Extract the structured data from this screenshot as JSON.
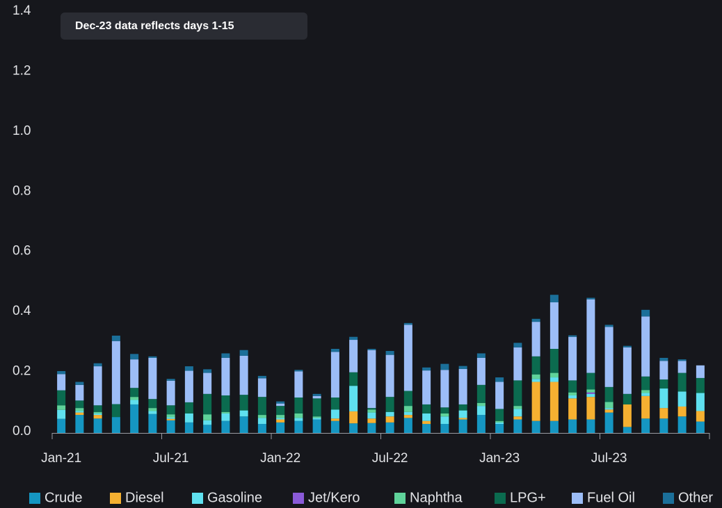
{
  "chart_data": {
    "type": "stacked_bar",
    "annotation": "Dec-23 data reflects days 1-15",
    "categories": [
      "Jan-21",
      null,
      null,
      null,
      null,
      null,
      "Jul-21",
      null,
      null,
      null,
      null,
      null,
      "Jan-22",
      null,
      null,
      null,
      null,
      null,
      "Jul-22",
      null,
      null,
      null,
      null,
      null,
      "Jan-23",
      null,
      null,
      null,
      null,
      null,
      "Jul-23",
      null,
      null,
      null,
      null,
      null
    ],
    "ylim": [
      0,
      1.4
    ],
    "yticks": [
      {
        "value": 0,
        "label": "0.0"
      },
      0.2,
      0.4,
      0.6,
      0.8,
      {
        "value": 1,
        "label": "1.0"
      },
      1.2,
      1.4
    ],
    "grid": false,
    "legend": "bottom",
    "series": [
      {
        "name": "Crude",
        "color": "#1596c2",
        "values": [
          0.047,
          0.06,
          0.048,
          0.053,
          0.095,
          0.063,
          0.042,
          0.035,
          0.027,
          0.04,
          0.055,
          0.03,
          0.035,
          0.04,
          0.045,
          0.04,
          0.032,
          0.033,
          0.035,
          0.05,
          0.03,
          0.03,
          0.045,
          0.06,
          0.03,
          0.045,
          0.04,
          0.04,
          0.045,
          0.045,
          0.068,
          0.02,
          0.048,
          0.048,
          0.055,
          0.038
        ]
      },
      {
        "name": "Diesel",
        "color": "#f5b031",
        "values": [
          0,
          0.008,
          0.012,
          0,
          0,
          0,
          0.005,
          0,
          0,
          0,
          0,
          0,
          0.01,
          0,
          0,
          0.008,
          0.04,
          0.015,
          0.02,
          0.01,
          0.01,
          0,
          0.005,
          0,
          0,
          0.01,
          0.13,
          0.13,
          0.07,
          0.075,
          0.01,
          0.075,
          0.075,
          0.035,
          0.033,
          0.035
        ]
      },
      {
        "name": "Gasoline",
        "color": "#5fe0ef",
        "values": [
          0.03,
          0.005,
          0.005,
          0,
          0.015,
          0.01,
          0.005,
          0.03,
          0.015,
          0.025,
          0.02,
          0.02,
          0.005,
          0.01,
          0.005,
          0.03,
          0.085,
          0.02,
          0.015,
          0.01,
          0.025,
          0.025,
          0.025,
          0.03,
          0.005,
          0.025,
          0.01,
          0.015,
          0.01,
          0.01,
          0.005,
          0,
          0.01,
          0.065,
          0.05,
          0.06
        ]
      },
      {
        "name": "Jet/Kero",
        "color": "#8a5ad8",
        "values": [
          0,
          0,
          0,
          0,
          0,
          0,
          0,
          0,
          0,
          0,
          0,
          0,
          0,
          0,
          0,
          0,
          0,
          0,
          0,
          0,
          0,
          0,
          0,
          0,
          0,
          0,
          0,
          0,
          0,
          0.005,
          0,
          0,
          0,
          0,
          0,
          0
        ]
      },
      {
        "name": "Naphtha",
        "color": "#5fd39a",
        "values": [
          0.015,
          0.01,
          0.005,
          0,
          0.01,
          0.01,
          0.01,
          0,
          0.02,
          0.005,
          0,
          0.01,
          0.01,
          0.015,
          0.005,
          0,
          0,
          0.01,
          0,
          0.02,
          0,
          0.01,
          0,
          0.01,
          0.005,
          0.01,
          0.015,
          0.015,
          0.01,
          0.01,
          0.02,
          0,
          0.01,
          0,
          0,
          0
        ]
      },
      {
        "name": "LPG+",
        "color": "#0b6b4f",
        "values": [
          0.05,
          0.025,
          0.022,
          0.043,
          0.03,
          0.03,
          0.03,
          0.037,
          0.068,
          0.055,
          0.052,
          0.06,
          0.03,
          0.053,
          0.06,
          0.04,
          0.045,
          0.005,
          0.05,
          0.05,
          0.03,
          0.02,
          0.02,
          0.06,
          0.04,
          0.085,
          0.06,
          0.08,
          0.04,
          0.055,
          0.05,
          0.035,
          0.045,
          0.03,
          0.062,
          0.05
        ]
      },
      {
        "name": "Fuel Oil",
        "color": "#9cbdf7",
        "values": [
          0.054,
          0.052,
          0.13,
          0.21,
          0.095,
          0.137,
          0.082,
          0.105,
          0.07,
          0.125,
          0.13,
          0.062,
          0.008,
          0.087,
          0.008,
          0.152,
          0.108,
          0.193,
          0.14,
          0.22,
          0.113,
          0.125,
          0.118,
          0.09,
          0.09,
          0.11,
          0.115,
          0.155,
          0.145,
          0.245,
          0.2,
          0.155,
          0.2,
          0.062,
          0.04,
          0.042
        ]
      },
      {
        "name": "Other",
        "color": "#1b6f99",
        "values": [
          0.01,
          0.01,
          0.01,
          0.018,
          0.018,
          0.005,
          0.006,
          0.015,
          0.012,
          0.015,
          0.019,
          0.008,
          0.007,
          0.005,
          0.007,
          0.01,
          0.01,
          0.004,
          0.013,
          0.006,
          0.01,
          0.02,
          0.01,
          0.015,
          0.015,
          0.015,
          0.01,
          0.025,
          0.005,
          0.005,
          0.007,
          0.005,
          0.022,
          0.01,
          0.005,
          0
        ]
      }
    ]
  }
}
